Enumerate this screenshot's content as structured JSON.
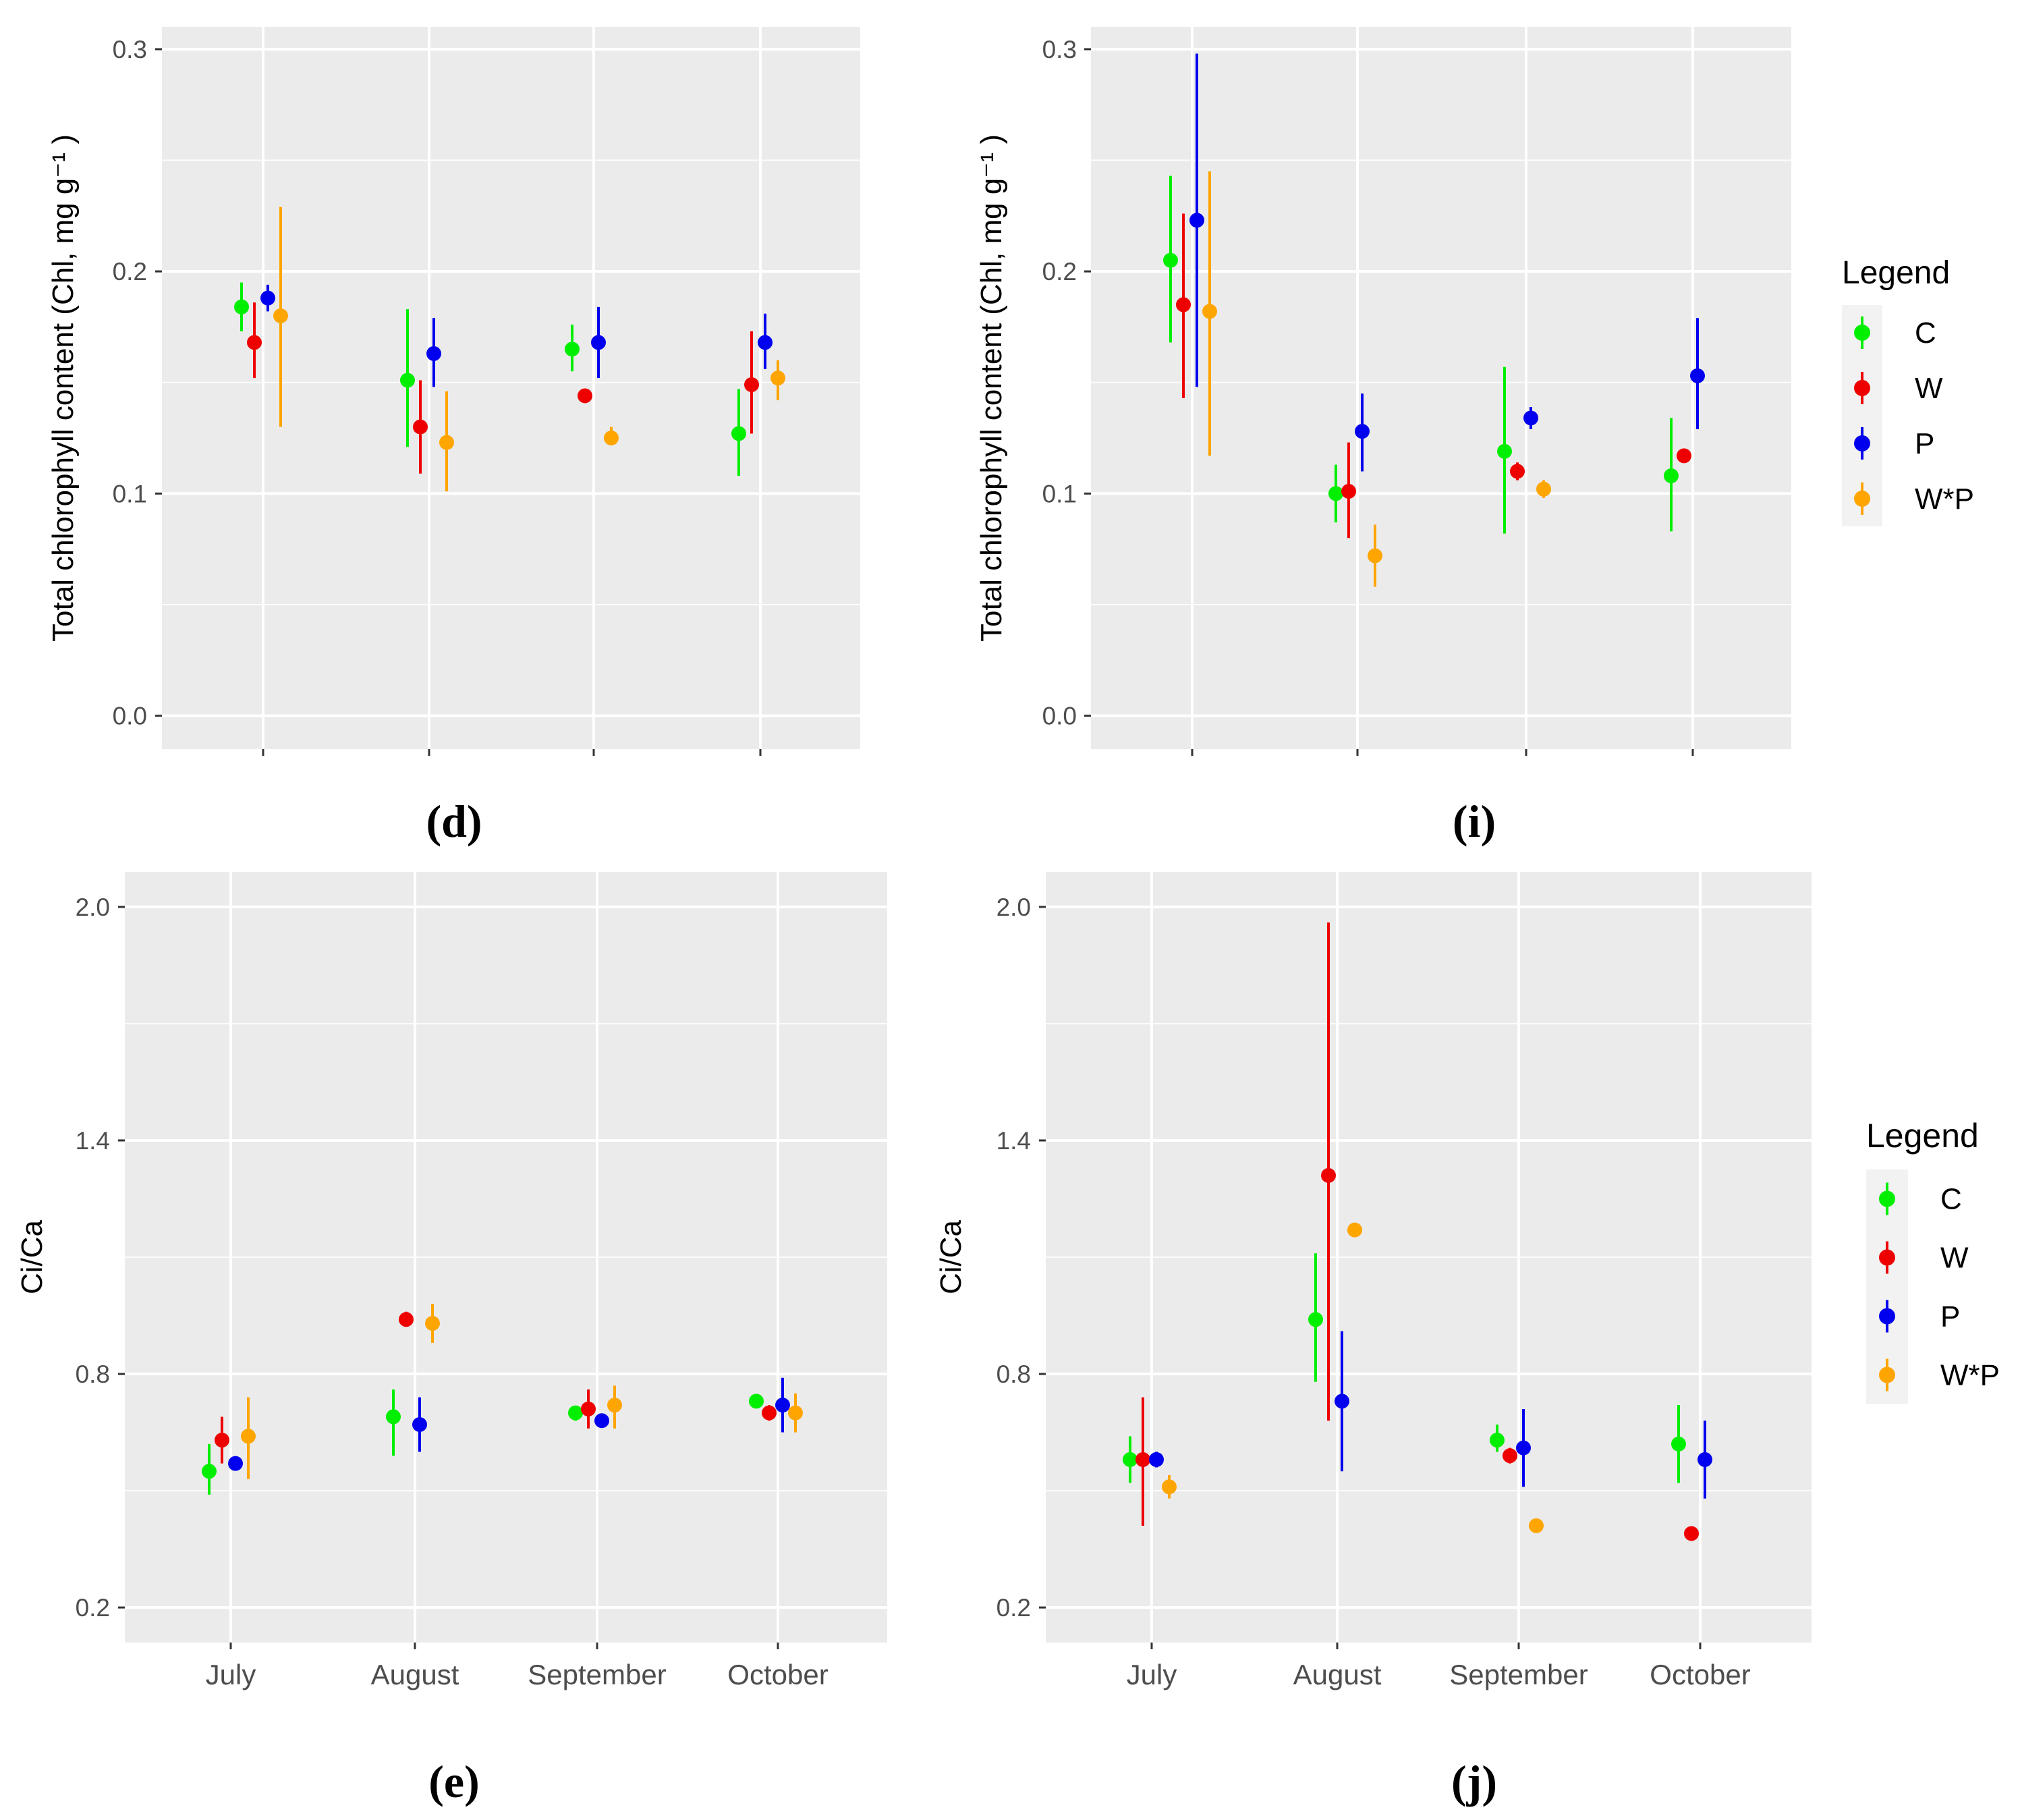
{
  "colors": {
    "panel_bg": "#ebebeb",
    "major_grid": "#ffffff",
    "minor_grid": "#f5f5f5",
    "C": "#00ee00",
    "W": "#ee0000",
    "P": "#0000ee",
    "W*P": "#ffa500"
  },
  "legend": {
    "title": "Legend",
    "labels": [
      "C",
      "W",
      "P",
      "W*P"
    ]
  },
  "chart_data": [
    {
      "type": "scatter",
      "panel_label": "(d)",
      "ylabel": "Total chlorophyll content (Chl, mg g⁻¹ )",
      "categories": [
        "July",
        "August",
        "September",
        "October"
      ],
      "show_x_tick_labels": false,
      "ylim": [
        -0.015,
        0.31
      ],
      "yticks": [
        0.0,
        0.1,
        0.2,
        0.3
      ],
      "ytick_labels": [
        "0.0",
        "0.1",
        "0.2",
        "0.3"
      ],
      "grid": true,
      "series": [
        {
          "name": "C",
          "values": [
            0.184,
            0.151,
            0.165,
            0.127
          ],
          "lower": [
            0.173,
            0.121,
            0.155,
            0.108
          ],
          "upper": [
            0.195,
            0.183,
            0.176,
            0.147
          ]
        },
        {
          "name": "W",
          "values": [
            0.168,
            0.13,
            0.144,
            0.149
          ],
          "lower": [
            0.152,
            0.109,
            0.142,
            0.127
          ],
          "upper": [
            0.186,
            0.151,
            0.147,
            0.173
          ]
        },
        {
          "name": "P",
          "values": [
            0.188,
            0.163,
            0.168,
            0.168
          ],
          "lower": [
            0.182,
            0.148,
            0.152,
            0.156
          ],
          "upper": [
            0.194,
            0.179,
            0.184,
            0.181
          ]
        },
        {
          "name": "W*P",
          "values": [
            0.18,
            0.123,
            0.125,
            0.152
          ],
          "lower": [
            0.13,
            0.101,
            0.122,
            0.142
          ],
          "upper": [
            0.229,
            0.146,
            0.13,
            0.16
          ]
        }
      ]
    },
    {
      "type": "scatter",
      "panel_label": "(i)",
      "ylabel": "Total chlorophyll content (Chl, mg g⁻¹ )",
      "categories": [
        "July",
        "August",
        "September",
        "October"
      ],
      "show_x_tick_labels": false,
      "ylim": [
        -0.015,
        0.31
      ],
      "yticks": [
        0.0,
        0.1,
        0.2,
        0.3
      ],
      "ytick_labels": [
        "0.0",
        "0.1",
        "0.2",
        "0.3"
      ],
      "grid": true,
      "series": [
        {
          "name": "C",
          "values": [
            0.205,
            0.1,
            0.119,
            0.108
          ],
          "lower": [
            0.168,
            0.087,
            0.082,
            0.083
          ],
          "upper": [
            0.243,
            0.113,
            0.157,
            0.134
          ]
        },
        {
          "name": "W",
          "values": [
            0.185,
            0.101,
            0.11,
            0.117
          ],
          "lower": [
            0.143,
            0.08,
            0.106,
            0.114
          ],
          "upper": [
            0.226,
            0.123,
            0.114,
            0.12
          ]
        },
        {
          "name": "P",
          "values": [
            0.223,
            0.128,
            0.134,
            0.153
          ],
          "lower": [
            0.148,
            0.11,
            0.129,
            0.129
          ],
          "upper": [
            0.298,
            0.145,
            0.139,
            0.179
          ]
        },
        {
          "name": "W*P",
          "values": [
            0.182,
            0.072,
            0.102,
            null
          ],
          "lower": [
            0.117,
            0.058,
            0.098,
            null
          ],
          "upper": [
            0.245,
            0.086,
            0.106,
            null
          ]
        }
      ]
    },
    {
      "type": "scatter",
      "panel_label": "(e)",
      "ylabel": "Ci/Ca",
      "categories": [
        "July",
        "August",
        "September",
        "October"
      ],
      "show_x_tick_labels": true,
      "ylim": [
        0.11,
        2.09
      ],
      "yticks": [
        0.2,
        0.8,
        1.4,
        2.0
      ],
      "ytick_labels": [
        "0.2",
        "0.8",
        "1.4",
        "2.0"
      ],
      "grid": true,
      "series": [
        {
          "name": "C",
          "values": [
            0.55,
            0.69,
            0.7,
            0.73
          ],
          "lower": [
            0.49,
            0.59,
            0.68,
            0.72
          ],
          "upper": [
            0.62,
            0.76,
            0.71,
            0.74
          ]
        },
        {
          "name": "W",
          "values": [
            0.63,
            0.94,
            0.71,
            0.7
          ],
          "lower": [
            0.57,
            0.93,
            0.66,
            0.68
          ],
          "upper": [
            0.69,
            0.96,
            0.76,
            0.72
          ]
        },
        {
          "name": "P",
          "values": [
            0.57,
            0.67,
            0.68,
            0.72
          ],
          "lower": [
            0.56,
            0.6,
            0.67,
            0.65
          ],
          "upper": [
            0.58,
            0.74,
            0.69,
            0.79
          ]
        },
        {
          "name": "W*P",
          "values": [
            0.64,
            0.93,
            0.72,
            0.7
          ],
          "lower": [
            0.53,
            0.88,
            0.66,
            0.65
          ],
          "upper": [
            0.74,
            0.98,
            0.77,
            0.75
          ]
        }
      ]
    },
    {
      "type": "scatter",
      "panel_label": "(j)",
      "ylabel": "Ci/Ca",
      "categories": [
        "July",
        "August",
        "September",
        "October"
      ],
      "show_x_tick_labels": true,
      "ylim": [
        0.11,
        2.09
      ],
      "yticks": [
        0.2,
        0.8,
        1.4,
        2.0
      ],
      "ytick_labels": [
        "0.2",
        "0.8",
        "1.4",
        "2.0"
      ],
      "grid": true,
      "series": [
        {
          "name": "C",
          "values": [
            0.58,
            0.94,
            0.63,
            0.62
          ],
          "lower": [
            0.52,
            0.78,
            0.6,
            0.52
          ],
          "upper": [
            0.64,
            1.11,
            0.67,
            0.72
          ]
        },
        {
          "name": "W",
          "values": [
            0.58,
            1.31,
            0.59,
            0.39
          ],
          "lower": [
            0.41,
            0.68,
            0.57,
            0.38
          ],
          "upper": [
            0.74,
            1.96,
            0.61,
            0.4
          ]
        },
        {
          "name": "P",
          "values": [
            0.58,
            0.73,
            0.61,
            0.58
          ],
          "lower": [
            0.56,
            0.55,
            0.51,
            0.48
          ],
          "upper": [
            0.6,
            0.91,
            0.71,
            0.68
          ]
        },
        {
          "name": "W*P",
          "values": [
            0.51,
            1.17,
            0.41,
            null
          ],
          "lower": [
            0.48,
            1.16,
            0.4,
            null
          ],
          "upper": [
            0.54,
            1.18,
            0.42,
            null
          ]
        }
      ]
    }
  ]
}
